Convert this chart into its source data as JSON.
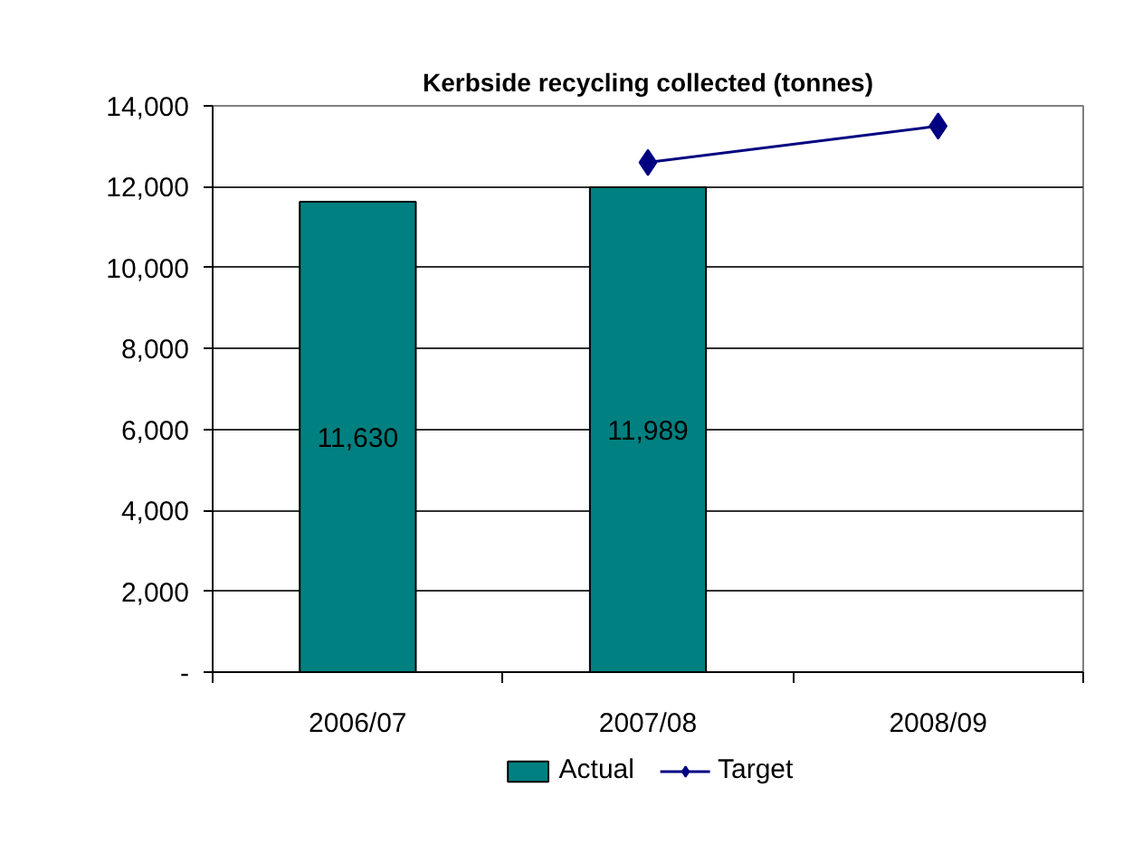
{
  "chart_data": {
    "type": "bar",
    "title": "Kerbside recycling collected (tonnes)",
    "categories": [
      "2006/07",
      "2007/08",
      "2008/09"
    ],
    "series": [
      {
        "name": "Actual",
        "color": "#008080",
        "values": [
          11630,
          11989,
          null
        ],
        "value_labels": [
          "11,630",
          "11,989",
          null
        ]
      },
      {
        "name": "Target",
        "type": "line",
        "color": "#000080",
        "marker": "diamond",
        "values": [
          null,
          12600,
          13500
        ]
      }
    ],
    "ylim": [
      0,
      14000
    ],
    "yticks": [
      {
        "value": 0,
        "label": "-"
      },
      {
        "value": 2000,
        "label": "2,000"
      },
      {
        "value": 4000,
        "label": "4,000"
      },
      {
        "value": 6000,
        "label": "6,000"
      },
      {
        "value": 8000,
        "label": "8,000"
      },
      {
        "value": 10000,
        "label": "10,000"
      },
      {
        "value": 12000,
        "label": "12,000"
      },
      {
        "value": 14000,
        "label": "14,000"
      }
    ],
    "grid": "y",
    "legend": "bottom"
  }
}
